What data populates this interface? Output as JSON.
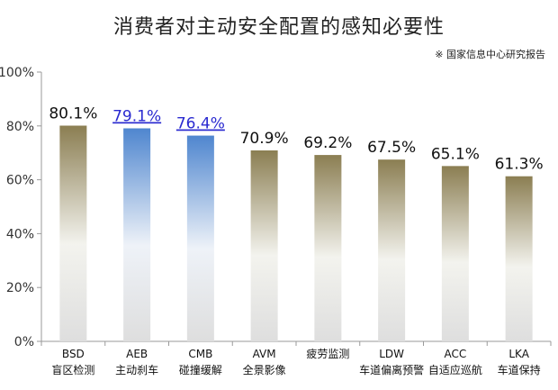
{
  "header": {
    "title": "消费者对主动安全配置的感知必要性",
    "source_note": "※ 国家信息中心研究报告"
  },
  "colors": {
    "olive_top": "#8b7e52",
    "olive_bottom": "#f3f3ee",
    "blue_top": "#4f86cf",
    "blue_bottom": "#eef2f8",
    "axis": "#9a9a9a",
    "link_text": "#2a2ad0"
  },
  "chart_data": {
    "type": "bar",
    "title": "消费者对主动安全配置的感知必要性",
    "categories": [
      "BSD",
      "AEB",
      "CMB",
      "AVM",
      "疲劳监测",
      "LDW",
      "ACC",
      "LKA"
    ],
    "category_names": [
      "盲区检测",
      "主动刹车",
      "碰撞缓解",
      "全景影像",
      "",
      "车道偏离预警",
      "自适应巡航",
      "车道保持"
    ],
    "values": [
      80.1,
      79.1,
      76.4,
      70.9,
      69.2,
      67.5,
      65.1,
      61.3
    ],
    "value_labels": [
      "80.1%",
      "79.1%",
      "76.4%",
      "70.9%",
      "69.2%",
      "67.5%",
      "65.1%",
      "61.3%"
    ],
    "highlighted": [
      false,
      true,
      true,
      false,
      false,
      false,
      false,
      false
    ],
    "ylim": [
      0,
      100
    ],
    "yticks": [
      0,
      20,
      40,
      60,
      80,
      100
    ],
    "ytick_labels": [
      "0%",
      "20%",
      "40%",
      "60%",
      "80%",
      "100%"
    ],
    "xlabel": "",
    "ylabel": "",
    "grid": false
  }
}
